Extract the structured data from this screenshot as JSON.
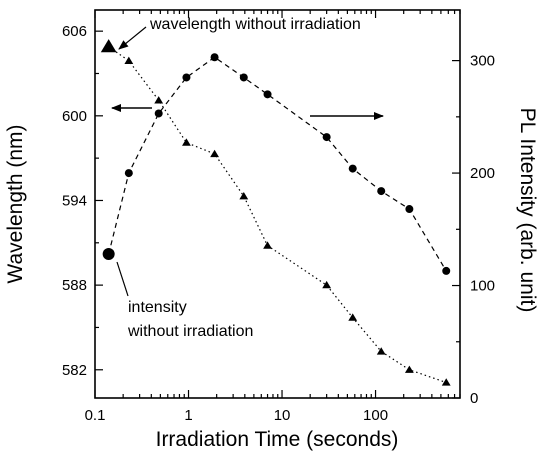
{
  "chart_data": {
    "type": "scatter",
    "xlabel": "Irradiation Time (seconds)",
    "ylabel_left": "Wavelength (nm)",
    "ylabel_right": "PL Intensity (arb. unit)",
    "x_scale": "log",
    "xlim": [
      0.1,
      800
    ],
    "ylim_left": [
      580,
      607.5
    ],
    "ylim_right": [
      0,
      345
    ],
    "x_ticks": [
      0.1,
      1,
      10,
      100
    ],
    "x_tick_labels": [
      "0.1",
      "1",
      "10",
      "100"
    ],
    "y_left_ticks": [
      582,
      588,
      594,
      600,
      606
    ],
    "y_left_tick_labels": [
      "582",
      "588",
      "594",
      "600",
      "606"
    ],
    "y_right_ticks": [
      0,
      100,
      200,
      300
    ],
    "y_right_tick_labels": [
      "0",
      "100",
      "200",
      "300"
    ],
    "grid": false,
    "series": [
      {
        "axis": "left",
        "marker": "triangle",
        "line_style": "dotted",
        "x": [
          0.14,
          0.23,
          0.48,
          0.95,
          1.9,
          3.9,
          7.0,
          30,
          57,
          115,
          230,
          570
        ],
        "y": [
          604.9,
          603.9,
          601.1,
          598.1,
          597.3,
          594.3,
          590.8,
          588.0,
          585.7,
          583.3,
          582.0,
          581.1
        ]
      },
      {
        "axis": "right",
        "marker": "circle",
        "line_style": "dashed",
        "x": [
          0.14,
          0.23,
          0.48,
          0.95,
          1.9,
          3.9,
          7.0,
          30,
          57,
          115,
          230,
          570
        ],
        "y": [
          128,
          200,
          253,
          285,
          303,
          285,
          270,
          232,
          204,
          184,
          168,
          113
        ]
      }
    ],
    "annotations": [
      {
        "text": "wavelength without irradiation"
      },
      {
        "text": "intensity"
      },
      {
        "text": "without irradiation"
      }
    ]
  }
}
